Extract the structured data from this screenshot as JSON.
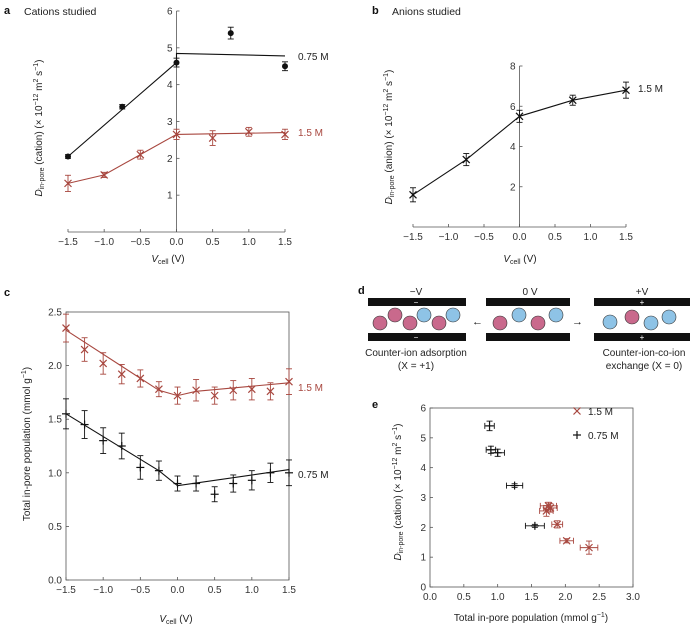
{
  "chart_data": [
    {
      "panel": "a",
      "type": "line",
      "title": "Cations studied",
      "xlabel": "V_cell (V)",
      "ylabel": "D_in-pore (cation) (×10^-12 m^2 s^-1)",
      "xlim": [
        -1.5,
        1.5
      ],
      "ylim": [
        0,
        6
      ],
      "xticks": [
        "−1.5",
        "−1.0",
        "−0.5",
        "0.0",
        "0.5",
        "1.0",
        "1.5"
      ],
      "yticks": [
        "1",
        "2",
        "3",
        "4",
        "5",
        "6"
      ],
      "series": [
        {
          "name": "0.75 M",
          "color": "#111111",
          "marker": "dot",
          "points": [
            {
              "x": -1.5,
              "y": 2.05,
              "err": 0.05
            },
            {
              "x": -0.75,
              "y": 3.4,
              "err": 0.06
            },
            {
              "x": 0.0,
              "y": 4.6,
              "err": 0.12
            },
            {
              "x": 0.75,
              "y": 5.4,
              "err": 0.16
            },
            {
              "x": 1.5,
              "y": 4.5,
              "err": 0.12
            }
          ],
          "line": [
            [
              -1.5,
              2.05
            ],
            [
              0.0,
              4.6
            ],
            [
              0.0,
              4.85
            ],
            [
              1.5,
              4.78
            ]
          ]
        },
        {
          "name": "1.5 M",
          "color": "#a8473f",
          "marker": "cross",
          "points": [
            {
              "x": -1.5,
              "y": 1.32,
              "err": 0.22
            },
            {
              "x": -1.0,
              "y": 1.55,
              "err": 0.07
            },
            {
              "x": -0.5,
              "y": 2.1,
              "err": 0.12
            },
            {
              "x": 0.0,
              "y": 2.65,
              "err": 0.14
            },
            {
              "x": 0.5,
              "y": 2.55,
              "err": 0.2
            },
            {
              "x": 1.0,
              "y": 2.72,
              "err": 0.12
            },
            {
              "x": 1.5,
              "y": 2.65,
              "err": 0.14
            }
          ],
          "line": [
            [
              -1.5,
              1.32
            ],
            [
              -1.0,
              1.55
            ],
            [
              -0.5,
              2.1
            ],
            [
              0.0,
              2.65
            ],
            [
              1.5,
              2.7
            ]
          ]
        }
      ]
    },
    {
      "panel": "b",
      "type": "line",
      "title": "Anions studied",
      "xlabel": "V_cell (V)",
      "ylabel": "D_in-pore (anion) (×10^-12 m^2 s^-1)",
      "xlim": [
        -1.5,
        1.5
      ],
      "ylim": [
        0,
        8
      ],
      "xticks": [
        "−1.5",
        "−1.0",
        "−0.5",
        "0.0",
        "0.5",
        "1.0",
        "1.5"
      ],
      "yticks": [
        "2",
        "4",
        "6",
        "8"
      ],
      "series": [
        {
          "name": "1.5 M",
          "color": "#111111",
          "marker": "cross",
          "points": [
            {
              "x": -1.5,
              "y": 1.6,
              "err": 0.35
            },
            {
              "x": -0.75,
              "y": 3.35,
              "err": 0.3
            },
            {
              "x": 0.0,
              "y": 5.5,
              "err": 0.3
            },
            {
              "x": 0.75,
              "y": 6.3,
              "err": 0.25
            },
            {
              "x": 1.5,
              "y": 6.8,
              "err": 0.4
            }
          ]
        }
      ]
    },
    {
      "panel": "c",
      "type": "line",
      "xlabel": "V_cell (V)",
      "ylabel": "Total in-pore population (mmol g^-1)",
      "xlim": [
        -1.5,
        1.5
      ],
      "ylim": [
        0,
        2.5
      ],
      "xticks": [
        "−1.5",
        "−1.0",
        "−0.5",
        "0.0",
        "0.5",
        "1.0",
        "1.5"
      ],
      "yticks": [
        "0.0",
        "0.5",
        "1.0",
        "1.5",
        "2.0",
        "2.5"
      ],
      "series": [
        {
          "name": "1.5 M",
          "color": "#a8473f",
          "marker": "cross",
          "points": [
            {
              "x": -1.5,
              "y": 2.35,
              "err": 0.13
            },
            {
              "x": -1.25,
              "y": 2.15,
              "err": 0.11
            },
            {
              "x": -1.0,
              "y": 2.02,
              "err": 0.1
            },
            {
              "x": -0.75,
              "y": 1.92,
              "err": 0.09
            },
            {
              "x": -0.5,
              "y": 1.88,
              "err": 0.08
            },
            {
              "x": -0.25,
              "y": 1.78,
              "err": 0.07
            },
            {
              "x": 0.0,
              "y": 1.72,
              "err": 0.08
            },
            {
              "x": 0.25,
              "y": 1.77,
              "err": 0.1
            },
            {
              "x": 0.5,
              "y": 1.72,
              "err": 0.08
            },
            {
              "x": 0.75,
              "y": 1.77,
              "err": 0.09
            },
            {
              "x": 1.0,
              "y": 1.78,
              "err": 0.1
            },
            {
              "x": 1.25,
              "y": 1.76,
              "err": 0.08
            },
            {
              "x": 1.5,
              "y": 1.85,
              "err": 0.12
            }
          ],
          "line": [
            [
              -1.5,
              2.33
            ],
            [
              -0.25,
              1.77
            ],
            [
              0.0,
              1.72
            ],
            [
              0.25,
              1.76
            ],
            [
              1.5,
              1.84
            ]
          ]
        },
        {
          "name": "0.75 M",
          "color": "#111111",
          "marker": "plus",
          "points": [
            {
              "x": -1.5,
              "y": 1.55,
              "err": 0.14
            },
            {
              "x": -1.25,
              "y": 1.45,
              "err": 0.13
            },
            {
              "x": -1.0,
              "y": 1.3,
              "err": 0.12
            },
            {
              "x": -0.75,
              "y": 1.25,
              "err": 0.12
            },
            {
              "x": -0.5,
              "y": 1.05,
              "err": 0.11
            },
            {
              "x": -0.25,
              "y": 1.02,
              "err": 0.09
            },
            {
              "x": 0.0,
              "y": 0.9,
              "err": 0.07
            },
            {
              "x": 0.25,
              "y": 0.9,
              "err": 0.07
            },
            {
              "x": 0.5,
              "y": 0.8,
              "err": 0.07
            },
            {
              "x": 0.75,
              "y": 0.9,
              "err": 0.08
            },
            {
              "x": 1.0,
              "y": 0.93,
              "err": 0.09
            },
            {
              "x": 1.25,
              "y": 1.0,
              "err": 0.09
            },
            {
              "x": 1.5,
              "y": 1.0,
              "err": 0.12
            }
          ],
          "line": [
            [
              -1.5,
              1.55
            ],
            [
              -0.25,
              1.02
            ],
            [
              0.0,
              0.88
            ],
            [
              1.5,
              1.03
            ]
          ]
        }
      ]
    },
    {
      "panel": "e",
      "type": "scatter",
      "xlabel": "Total in-pore population (mmol g^-1)",
      "ylabel": "D_in-pore (cation) (×10^-12 m^2 s^-1)",
      "xlim": [
        0,
        3
      ],
      "ylim": [
        0,
        6
      ],
      "xticks": [
        "0.0",
        "0.5",
        "1.0",
        "1.5",
        "2.0",
        "2.5",
        "3.0"
      ],
      "yticks": [
        "0",
        "1",
        "2",
        "3",
        "4",
        "5",
        "6"
      ],
      "legend": {
        "position": "top-right"
      },
      "series": [
        {
          "name": "1.5 M",
          "color": "#a8473f",
          "marker": "cross",
          "points": [
            {
              "x": 1.75,
              "y": 2.72,
              "xerr": 0.12,
              "yerr": 0.12
            },
            {
              "x": 1.72,
              "y": 2.55,
              "xerr": 0.1,
              "yerr": 0.18
            },
            {
              "x": 1.78,
              "y": 2.65,
              "xerr": 0.1,
              "yerr": 0.14
            },
            {
              "x": 1.88,
              "y": 2.1,
              "xerr": 0.08,
              "yerr": 0.12
            },
            {
              "x": 2.02,
              "y": 1.55,
              "xerr": 0.1,
              "yerr": 0.07
            },
            {
              "x": 2.35,
              "y": 1.32,
              "xerr": 0.13,
              "yerr": 0.22
            }
          ]
        },
        {
          "name": "0.75 M",
          "color": "#111111",
          "marker": "plus",
          "points": [
            {
              "x": 0.88,
              "y": 5.4,
              "xerr": 0.07,
              "yerr": 0.16
            },
            {
              "x": 0.9,
              "y": 4.6,
              "xerr": 0.07,
              "yerr": 0.12
            },
            {
              "x": 1.0,
              "y": 4.5,
              "xerr": 0.1,
              "yerr": 0.12
            },
            {
              "x": 1.25,
              "y": 3.4,
              "xerr": 0.12,
              "yerr": 0.06
            },
            {
              "x": 1.55,
              "y": 2.05,
              "xerr": 0.14,
              "yerr": 0.05
            }
          ]
        }
      ]
    }
  ],
  "labels": {
    "a": {
      "panel_letter": "a",
      "title": "Cations studied",
      "ylabel_D": "D",
      "ylabel_sub": "in-pore",
      "ylabel_rest": " (cation) (× 10",
      "ylabel_exp1": "−12",
      "ylabel_mid": " m",
      "ylabel_exp2": "2",
      "ylabel_tail": " s",
      "ylabel_exp3": "−1",
      "ylabel_close": ")",
      "xlabel_V": "V",
      "xlabel_sub": "cell",
      "xlabel_rest": " (V)",
      "series_075": "0.75 M",
      "series_15": "1.5 M"
    },
    "b": {
      "panel_letter": "b",
      "title": "Anions studied",
      "ylabel_D": "D",
      "ylabel_sub": "in-pore",
      "ylabel_rest": " (anion) (× 10",
      "ylabel_exp1": "−12",
      "ylabel_mid": " m",
      "ylabel_exp2": "2",
      "ylabel_tail": " s",
      "ylabel_exp3": "−1",
      "ylabel_close": ")",
      "xlabel_V": "V",
      "xlabel_sub": "cell",
      "xlabel_rest": " (V)",
      "series_15": "1.5 M"
    },
    "c": {
      "panel_letter": "c",
      "ylabel_main": "Total in-pore population (mmol g",
      "ylabel_exp": "−1",
      "ylabel_close": ")",
      "xlabel_V": "V",
      "xlabel_sub": "cell",
      "xlabel_rest": " (V)",
      "series_15": "1.5 M",
      "series_075": "0.75 M"
    },
    "d": {
      "panel_letter": "d",
      "left_voltage": "−V",
      "mid_voltage": "0 V",
      "right_voltage": "+V",
      "minus_sign": "−",
      "plus_sign": "+",
      "left_caption_1": "Counter-ion adsorption",
      "left_caption_2": "(X = +1)",
      "right_caption_1": "Counter-ion-co-ion",
      "right_caption_2": "exchange (X = 0)",
      "arrow_left": "←",
      "arrow_right": "→"
    },
    "e": {
      "panel_letter": "e",
      "ylabel_D": "D",
      "ylabel_sub": "in-pore",
      "ylabel_rest": " (cation) (× 10",
      "ylabel_exp1": "−12",
      "ylabel_mid": " m",
      "ylabel_exp2": "2",
      "ylabel_tail": " s",
      "ylabel_exp3": "−1",
      "ylabel_close": ")",
      "xlabel_main": "Total in-pore population (mmol g",
      "xlabel_exp": "−1",
      "xlabel_close": ")",
      "legend_15": "1.5 M",
      "legend_075": "0.75 M"
    }
  },
  "colors": {
    "black_series": "#111111",
    "red_series": "#a8473f",
    "cation": "#c9698c",
    "anion": "#8ec3e6",
    "pore_wall": "#111111"
  }
}
